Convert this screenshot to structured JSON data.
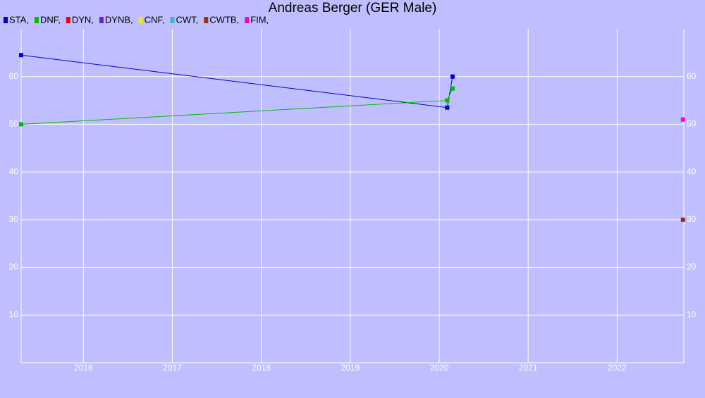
{
  "chart_data": {
    "type": "line",
    "title": "Andreas Berger (GER Male)",
    "xlim": [
      2015.3,
      2022.75
    ],
    "xticks": [
      2016,
      2017,
      2018,
      2019,
      2020,
      2021,
      2022
    ],
    "ylim": [
      0,
      70
    ],
    "yticks": [
      10,
      20,
      30,
      40,
      50,
      60
    ],
    "grid": true,
    "series": [
      {
        "name": "STA,",
        "color": "#0000cc",
        "x": [
          2015.3,
          2020.09,
          2020.15
        ],
        "values": [
          64.5,
          53.5,
          60
        ]
      },
      {
        "name": "DNF,",
        "color": "#00bb00",
        "x": [
          2015.3,
          2020.09,
          2020.15
        ],
        "values": [
          50,
          55,
          57.5
        ]
      },
      {
        "name": "DYN,",
        "color": "#ee0000",
        "x": [],
        "values": []
      },
      {
        "name": "DYNB,",
        "color": "#6a1fd8",
        "x": [],
        "values": []
      },
      {
        "name": "CNF,",
        "color": "#eeee00",
        "x": [],
        "values": []
      },
      {
        "name": "CWT,",
        "color": "#33bbcc",
        "x": [],
        "values": []
      },
      {
        "name": "CWTB,",
        "color": "#993300",
        "x": [
          2022.74
        ],
        "values": [
          30
        ]
      },
      {
        "name": "FIM,",
        "color": "#ff00cc",
        "x": [
          2022.74
        ],
        "values": [
          51
        ]
      }
    ]
  }
}
